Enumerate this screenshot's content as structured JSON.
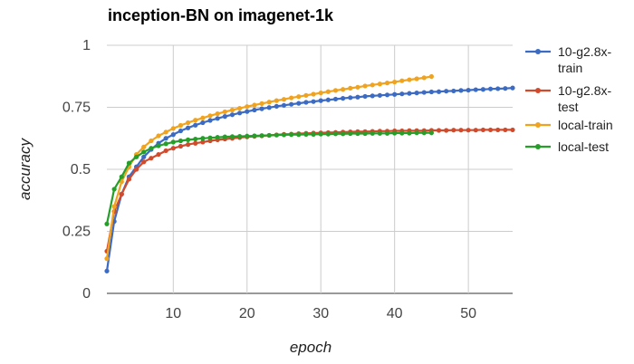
{
  "chart_data": {
    "type": "line",
    "title": "inception-BN on imagenet-1k",
    "xlabel": "epoch",
    "ylabel": "accuracy",
    "xlim": [
      1,
      56
    ],
    "ylim": [
      0,
      1
    ],
    "x_ticks": [
      10,
      20,
      30,
      40,
      50
    ],
    "y_ticks": [
      0,
      0.25,
      0.5,
      0.75,
      1
    ],
    "y_tick_labels": [
      "0",
      "0.25",
      "0.5",
      "0.75",
      "1"
    ],
    "grid": true,
    "legend_position": "right",
    "series": [
      {
        "name": "10-g2.8x-train",
        "color": "#3c6bc4",
        "x": [
          1,
          2,
          3,
          4,
          5,
          6,
          7,
          8,
          9,
          10,
          11,
          12,
          13,
          14,
          15,
          16,
          17,
          18,
          19,
          20,
          21,
          22,
          23,
          24,
          25,
          26,
          27,
          28,
          29,
          30,
          31,
          32,
          33,
          34,
          35,
          36,
          37,
          38,
          39,
          40,
          41,
          42,
          43,
          44,
          45,
          46,
          47,
          48,
          49,
          50,
          51,
          52,
          53,
          54,
          55,
          56
        ],
        "values": [
          0.09,
          0.29,
          0.4,
          0.47,
          0.51,
          0.55,
          0.58,
          0.605,
          0.625,
          0.64,
          0.655,
          0.667,
          0.678,
          0.688,
          0.697,
          0.705,
          0.713,
          0.72,
          0.727,
          0.733,
          0.739,
          0.744,
          0.749,
          0.754,
          0.758,
          0.762,
          0.766,
          0.77,
          0.773,
          0.777,
          0.78,
          0.783,
          0.786,
          0.789,
          0.791,
          0.794,
          0.796,
          0.798,
          0.8,
          0.802,
          0.804,
          0.806,
          0.808,
          0.81,
          0.812,
          0.813,
          0.815,
          0.816,
          0.818,
          0.819,
          0.821,
          0.822,
          0.824,
          0.825,
          0.826,
          0.828
        ]
      },
      {
        "name": "10-g2.8x-test",
        "color": "#d14a2c",
        "x": [
          1,
          2,
          3,
          4,
          5,
          6,
          7,
          8,
          9,
          10,
          11,
          12,
          13,
          14,
          15,
          16,
          17,
          18,
          19,
          20,
          21,
          22,
          23,
          24,
          25,
          26,
          27,
          28,
          29,
          30,
          31,
          32,
          33,
          34,
          35,
          36,
          37,
          38,
          39,
          40,
          41,
          42,
          43,
          44,
          45,
          46,
          47,
          48,
          49,
          50,
          51,
          52,
          53,
          54,
          55,
          56
        ],
        "values": [
          0.17,
          0.33,
          0.4,
          0.46,
          0.5,
          0.53,
          0.545,
          0.56,
          0.575,
          0.585,
          0.593,
          0.6,
          0.605,
          0.61,
          0.615,
          0.619,
          0.622,
          0.625,
          0.628,
          0.631,
          0.633,
          0.635,
          0.637,
          0.639,
          0.641,
          0.642,
          0.644,
          0.645,
          0.646,
          0.647,
          0.648,
          0.649,
          0.65,
          0.651,
          0.652,
          0.652,
          0.653,
          0.654,
          0.654,
          0.655,
          0.655,
          0.656,
          0.656,
          0.656,
          0.657,
          0.657,
          0.657,
          0.658,
          0.658,
          0.658,
          0.658,
          0.659,
          0.659,
          0.659,
          0.659,
          0.659
        ]
      },
      {
        "name": "local-train",
        "color": "#f0a31e",
        "x": [
          1,
          2,
          3,
          4,
          5,
          6,
          7,
          8,
          9,
          10,
          11,
          12,
          13,
          14,
          15,
          16,
          17,
          18,
          19,
          20,
          21,
          22,
          23,
          24,
          25,
          26,
          27,
          28,
          29,
          30,
          31,
          32,
          33,
          34,
          35,
          36,
          37,
          38,
          39,
          40,
          41,
          42,
          43,
          44,
          45
        ],
        "values": [
          0.14,
          0.35,
          0.45,
          0.51,
          0.56,
          0.59,
          0.615,
          0.635,
          0.65,
          0.665,
          0.677,
          0.688,
          0.698,
          0.707,
          0.716,
          0.724,
          0.732,
          0.739,
          0.746,
          0.753,
          0.759,
          0.765,
          0.771,
          0.777,
          0.782,
          0.788,
          0.793,
          0.798,
          0.803,
          0.808,
          0.813,
          0.818,
          0.822,
          0.827,
          0.831,
          0.836,
          0.84,
          0.844,
          0.848,
          0.852,
          0.857,
          0.861,
          0.865,
          0.869,
          0.874
        ]
      },
      {
        "name": "local-test",
        "color": "#269e2a",
        "x": [
          1,
          2,
          3,
          4,
          5,
          6,
          7,
          8,
          9,
          10,
          11,
          12,
          13,
          14,
          15,
          16,
          17,
          18,
          19,
          20,
          21,
          22,
          23,
          24,
          25,
          26,
          27,
          28,
          29,
          30,
          31,
          32,
          33,
          34,
          35,
          36,
          37,
          38,
          39,
          40,
          41,
          42,
          43,
          44,
          45
        ],
        "values": [
          0.28,
          0.42,
          0.47,
          0.525,
          0.55,
          0.57,
          0.585,
          0.595,
          0.603,
          0.61,
          0.615,
          0.619,
          0.622,
          0.625,
          0.627,
          0.629,
          0.631,
          0.632,
          0.633,
          0.634,
          0.635,
          0.636,
          0.637,
          0.638,
          0.639,
          0.64,
          0.64,
          0.641,
          0.641,
          0.642,
          0.642,
          0.643,
          0.643,
          0.644,
          0.644,
          0.644,
          0.645,
          0.645,
          0.645,
          0.646,
          0.646,
          0.646,
          0.647,
          0.647,
          0.647
        ]
      }
    ],
    "legend_entries": [
      {
        "lines": [
          "10-g2.8x-",
          "train"
        ]
      },
      {
        "lines": [
          "10-g2.8x-",
          "test"
        ]
      },
      {
        "lines": [
          "local-train"
        ]
      },
      {
        "lines": [
          "local-test"
        ]
      }
    ]
  }
}
